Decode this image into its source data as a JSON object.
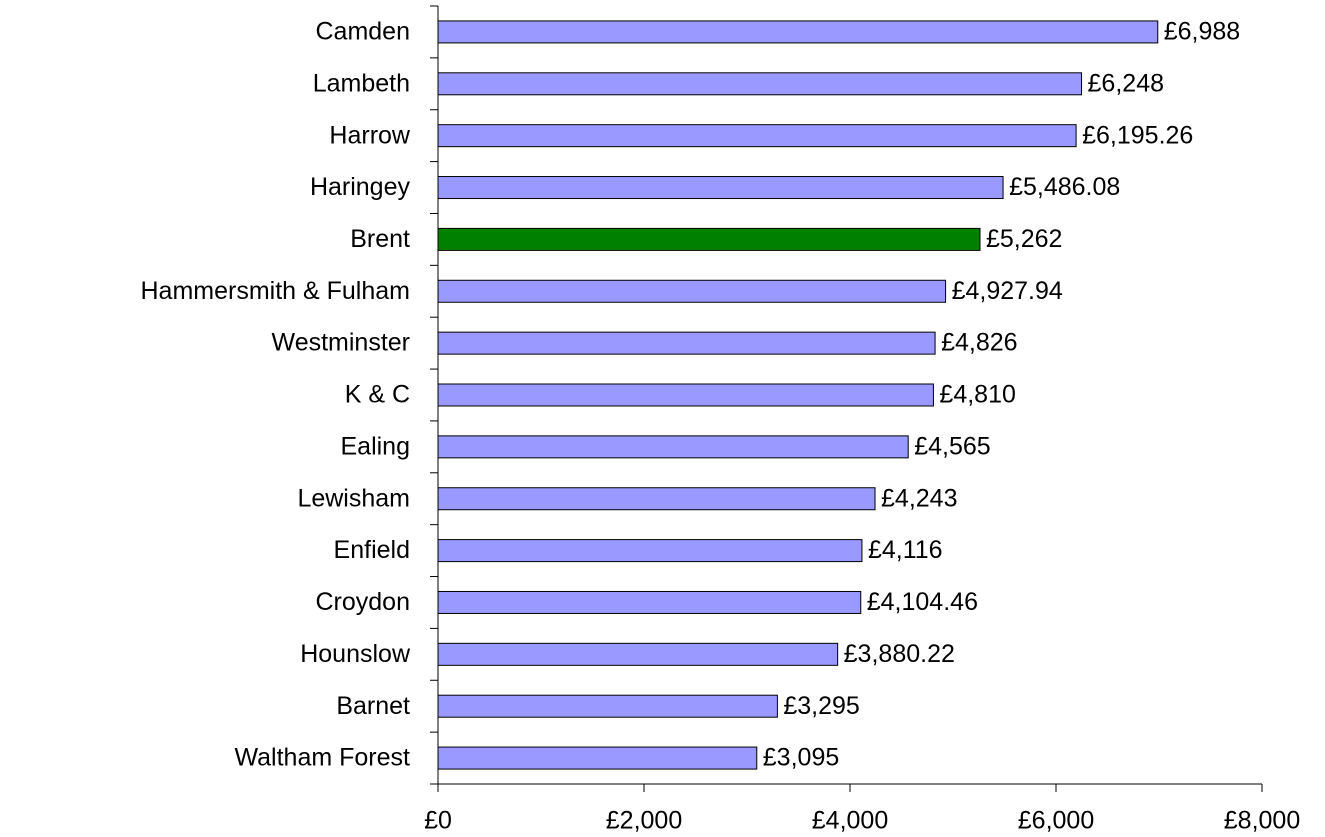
{
  "chart_data": {
    "type": "bar",
    "orientation": "horizontal",
    "categories": [
      "Camden",
      "Lambeth",
      "Harrow",
      "Haringey",
      "Brent",
      "Hammersmith & Fulham",
      "Westminster",
      "K & C",
      "Ealing",
      "Lewisham",
      "Enfield",
      "Croydon",
      "Hounslow",
      "Barnet",
      "Waltham Forest"
    ],
    "values": [
      6988,
      6248,
      6195.26,
      5486.08,
      5262,
      4927.94,
      4826,
      4810,
      4565,
      4243,
      4116,
      4104.46,
      3880.22,
      3295,
      3095
    ],
    "value_labels": [
      "£6,988",
      "£6,248",
      "£6,195.26",
      "£5,486.08",
      "£5,262",
      "£4,927.94",
      "£4,826",
      "£4,810",
      "£4,565",
      "£4,243",
      "£4,116",
      "£4,104.46",
      "£3,880.22",
      "£3,295",
      "£3,095"
    ],
    "colors": [
      "#9999ff",
      "#9999ff",
      "#9999ff",
      "#9999ff",
      "#008000",
      "#9999ff",
      "#9999ff",
      "#9999ff",
      "#9999ff",
      "#9999ff",
      "#9999ff",
      "#9999ff",
      "#9999ff",
      "#9999ff",
      "#9999ff"
    ],
    "xlim": [
      0,
      8000
    ],
    "xticks": [
      {
        "value": 0,
        "label": "£0"
      },
      {
        "value": 2000,
        "label": "£2,000"
      },
      {
        "value": 4000,
        "label": "£4,000"
      },
      {
        "value": 6000,
        "label": "£6,000"
      },
      {
        "value": 8000,
        "label": "£8,000"
      }
    ],
    "grid": false
  }
}
